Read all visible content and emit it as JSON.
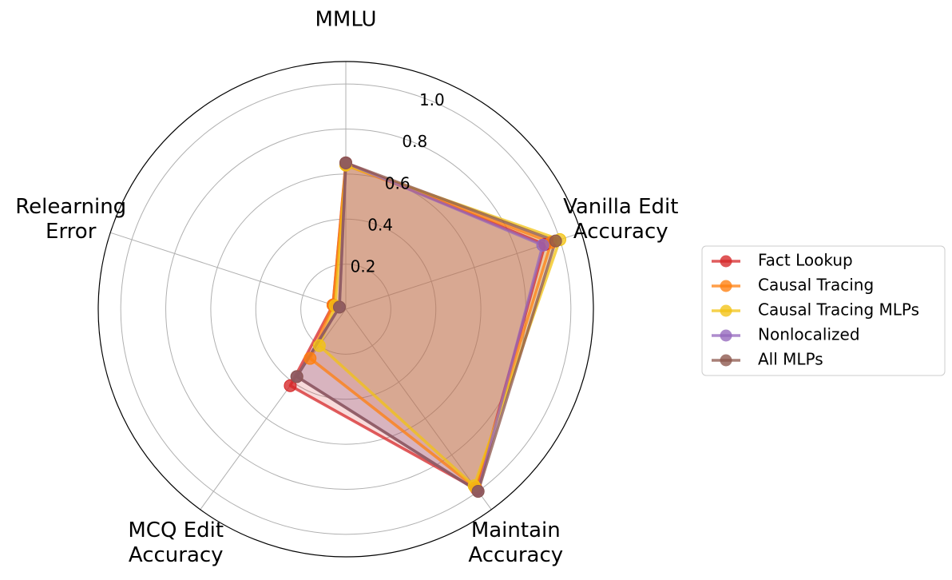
{
  "chart_data": {
    "type": "radar",
    "axes": [
      {
        "key": "mmlu",
        "label_lines": [
          "MMLU"
        ]
      },
      {
        "key": "vanilla_edit_accuracy",
        "label_lines": [
          "Vanilla Edit",
          "Accuracy"
        ]
      },
      {
        "key": "maintain_accuracy",
        "label_lines": [
          "Maintain",
          "Accuracy"
        ]
      },
      {
        "key": "mcq_edit_accuracy",
        "label_lines": [
          "MCQ Edit",
          "Accuracy"
        ]
      },
      {
        "key": "relearning_error",
        "label_lines": [
          "Relearning",
          "Error"
        ]
      }
    ],
    "rlim": [
      0,
      1.1
    ],
    "rticks": [
      0.2,
      0.4,
      0.6,
      0.8,
      1.0
    ],
    "rtick_labels": [
      "0.2",
      "0.4",
      "0.6",
      "0.8",
      "1.0"
    ],
    "grid": true,
    "legend_position": "right",
    "series": [
      {
        "name": "Fact Lookup",
        "color": "#d62728",
        "values": [
          0.65,
          0.93,
          0.99,
          0.42,
          0.06
        ]
      },
      {
        "name": "Causal Tracing",
        "color": "#ff7f0e",
        "values": [
          0.64,
          0.96,
          0.98,
          0.27,
          0.06
        ]
      },
      {
        "name": "Causal Tracing MLPs",
        "color": "#f2c314",
        "values": [
          0.64,
          1.0,
          0.97,
          0.2,
          0.05
        ]
      },
      {
        "name": "Nonlocalized",
        "color": "#9467bd",
        "values": [
          0.65,
          0.92,
          1.0,
          0.37,
          0.03
        ]
      },
      {
        "name": "All MLPs",
        "color": "#8c564b",
        "values": [
          0.65,
          0.98,
          1.0,
          0.37,
          0.03
        ]
      }
    ]
  }
}
